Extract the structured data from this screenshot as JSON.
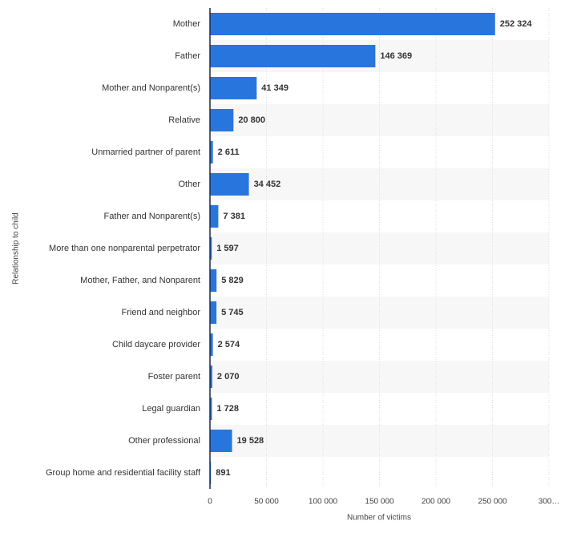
{
  "chart_data": {
    "type": "bar",
    "orientation": "horizontal",
    "x_label": "Number of victims",
    "y_label": "Relationship to child",
    "categories": [
      "Mother",
      "Father",
      "Mother and Nonparent(s)",
      "Relative",
      "Unmarried partner of parent",
      "Other",
      "Father and Nonparent(s)",
      "More than one nonparental perpetrator",
      "Mother, Father, and Nonparent",
      "Friend and neighbor",
      "Child daycare provider",
      "Foster parent",
      "Legal guardian",
      "Other professional",
      "Group home and residential facility staff"
    ],
    "values": [
      252324,
      146369,
      41349,
      20800,
      2611,
      34452,
      7381,
      1597,
      5829,
      5745,
      2574,
      2070,
      1728,
      19528,
      891
    ],
    "value_labels": [
      "252 324",
      "146 369",
      "41 349",
      "20 800",
      "2 611",
      "34 452",
      "7 381",
      "1 597",
      "5 829",
      "5 745",
      "2 574",
      "2 070",
      "1 728",
      "19 528",
      "891"
    ],
    "color": "#2876dd",
    "xlim": [
      0,
      300000
    ],
    "xticks": [
      0,
      {
        "value": 50000,
        "label": "50 000"
      },
      {
        "value": 100000,
        "label": "100 000"
      },
      {
        "value": 150000,
        "label": "150 000"
      },
      {
        "value": 200000,
        "label": "200 000"
      },
      {
        "value": 250000,
        "label": "250 000"
      },
      {
        "value": 300000,
        "label": "300…"
      }
    ],
    "grid": true
  }
}
